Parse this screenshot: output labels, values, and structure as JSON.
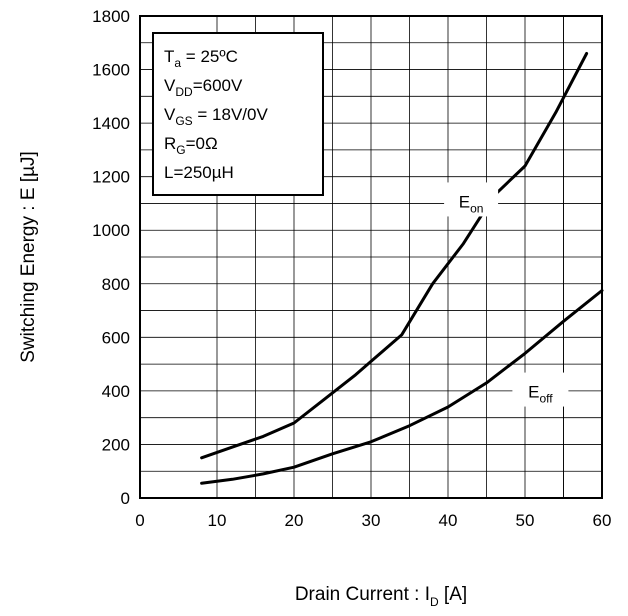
{
  "chart_data": {
    "type": "line",
    "title": "",
    "xlabel": "Drain Current : I",
    "xlabel_sub": "D",
    "xlabel_unit": " [A]",
    "ylabel": "Switching Energy : E [µJ]",
    "xlim": [
      0,
      60
    ],
    "ylim": [
      0,
      1800
    ],
    "x_ticks": [
      0,
      10,
      20,
      30,
      40,
      50,
      60
    ],
    "y_ticks": [
      0,
      200,
      400,
      600,
      800,
      1000,
      1200,
      1400,
      1600,
      1800
    ],
    "grid": true,
    "conditions": [
      {
        "main": "T",
        "sub": "a",
        "rest": " = 25ºC"
      },
      {
        "main": "V",
        "sub": "DD",
        "rest": "=600V"
      },
      {
        "main": "V",
        "sub": "GS",
        "rest": " = 18V/0V"
      },
      {
        "main": "R",
        "sub": "G",
        "rest": "=0Ω"
      },
      {
        "main": "L=250µH",
        "sub": "",
        "rest": ""
      }
    ],
    "series": [
      {
        "name": "E",
        "name_sub": "on",
        "color": "#000000",
        "x": [
          8,
          12,
          16,
          20,
          24,
          28,
          30,
          34,
          38,
          42,
          46,
          50,
          54,
          58
        ],
        "y": [
          150,
          190,
          230,
          280,
          370,
          460,
          510,
          610,
          800,
          950,
          1130,
          1240,
          1440,
          1660
        ]
      },
      {
        "name": "E",
        "name_sub": "off",
        "color": "#000000",
        "x": [
          8,
          12,
          16,
          20,
          25,
          30,
          35,
          40,
          45,
          50,
          55,
          60
        ],
        "y": [
          55,
          70,
          90,
          115,
          165,
          210,
          270,
          340,
          430,
          540,
          660,
          775
        ]
      }
    ]
  }
}
